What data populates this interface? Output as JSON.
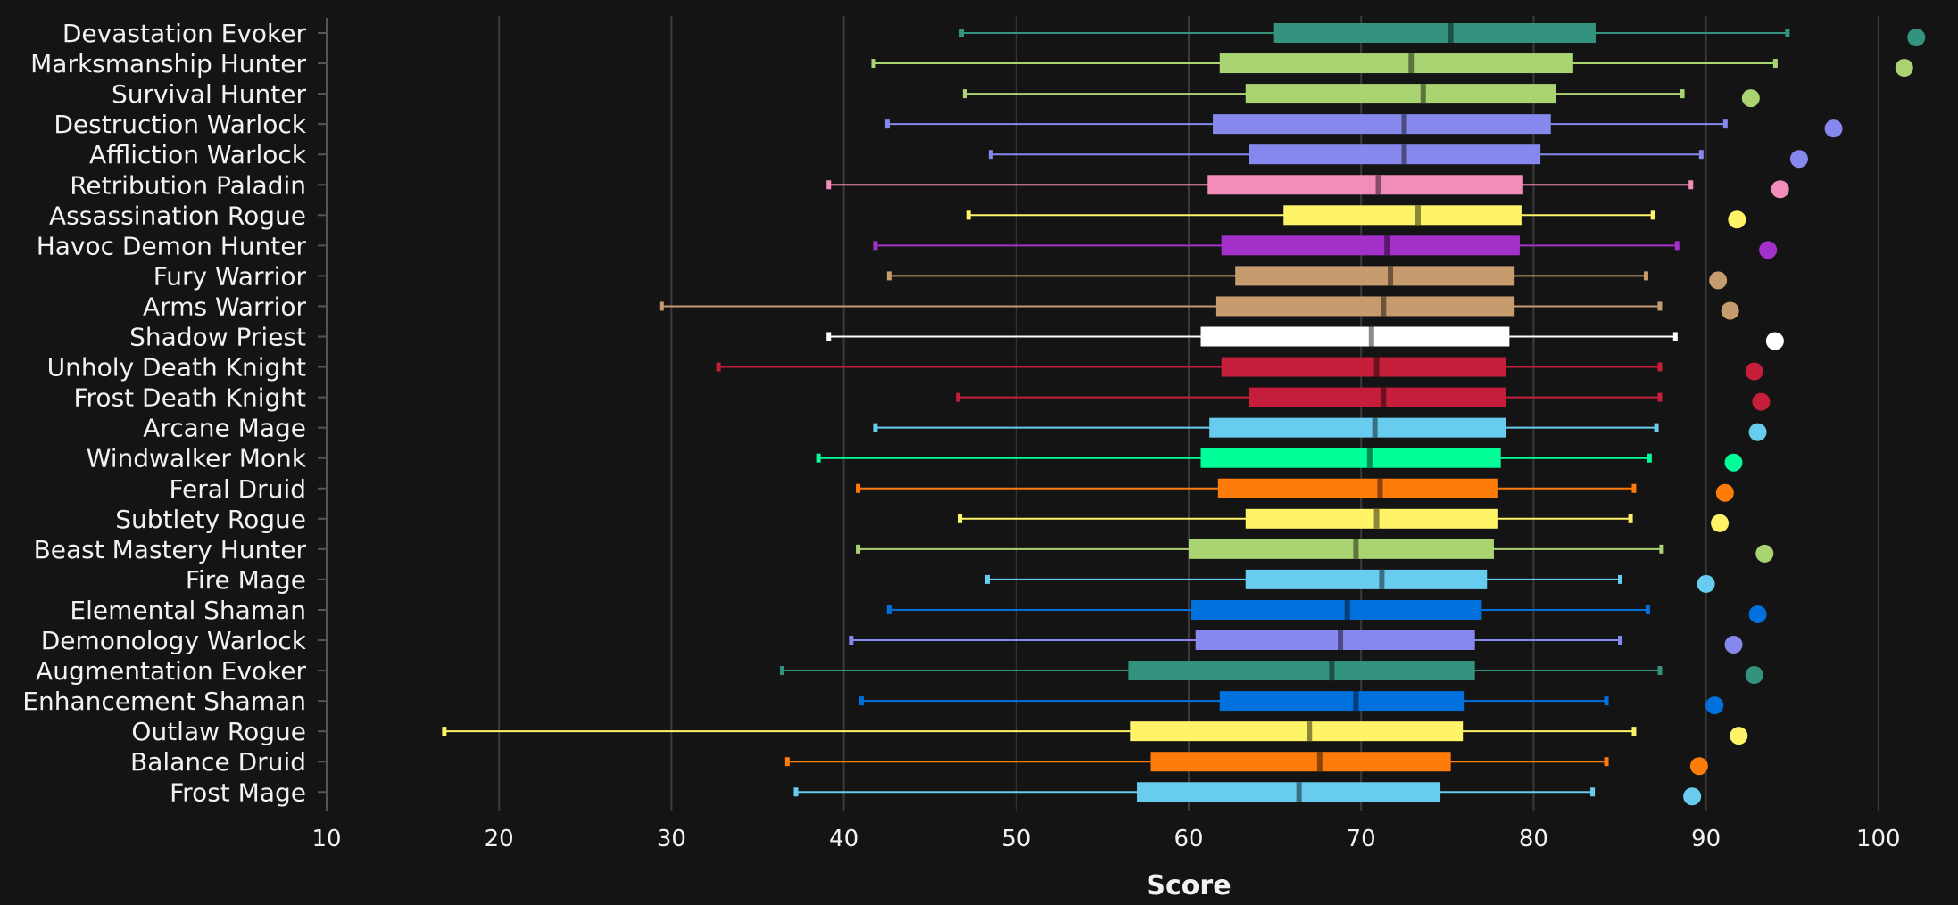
{
  "chart_data": {
    "type": "box",
    "orientation": "horizontal",
    "xlabel": "Score",
    "ylabel": "",
    "xlim": [
      10,
      102.5
    ],
    "xticks": [
      10,
      20,
      30,
      40,
      50,
      60,
      70,
      80,
      90,
      100
    ],
    "grid": true,
    "series": [
      {
        "name": "Devastation Evoker",
        "color": "#33937f",
        "min": 46.8,
        "q1": 64.9,
        "median": 75.2,
        "q3": 83.6,
        "max": 94.7,
        "point": 102.2
      },
      {
        "name": "Marksmanship Hunter",
        "color": "#aad372",
        "min": 41.7,
        "q1": 61.8,
        "median": 72.9,
        "q3": 82.3,
        "max": 94.0,
        "point": 101.5
      },
      {
        "name": "Survival Hunter",
        "color": "#aad372",
        "min": 47.0,
        "q1": 63.3,
        "median": 73.6,
        "q3": 81.3,
        "max": 88.6,
        "point": 92.6
      },
      {
        "name": "Destruction Warlock",
        "color": "#8788ee",
        "min": 42.5,
        "q1": 61.4,
        "median": 72.5,
        "q3": 81.0,
        "max": 91.1,
        "point": 97.4
      },
      {
        "name": "Affliction Warlock",
        "color": "#8788ee",
        "min": 48.5,
        "q1": 63.5,
        "median": 72.5,
        "q3": 80.4,
        "max": 89.7,
        "point": 95.4
      },
      {
        "name": "Retribution Paladin",
        "color": "#f48cba",
        "min": 39.1,
        "q1": 61.1,
        "median": 71.0,
        "q3": 79.4,
        "max": 89.1,
        "point": 94.3
      },
      {
        "name": "Assassination Rogue",
        "color": "#fff468",
        "min": 47.2,
        "q1": 65.5,
        "median": 73.3,
        "q3": 79.3,
        "max": 86.9,
        "point": 91.8
      },
      {
        "name": "Havoc Demon Hunter",
        "color": "#a330c9",
        "min": 41.8,
        "q1": 61.9,
        "median": 71.5,
        "q3": 79.2,
        "max": 88.3,
        "point": 93.6
      },
      {
        "name": "Fury Warrior",
        "color": "#c69b6d",
        "min": 42.6,
        "q1": 62.7,
        "median": 71.7,
        "q3": 78.9,
        "max": 86.5,
        "point": 90.7
      },
      {
        "name": "Arms Warrior",
        "color": "#c69b6d",
        "min": 29.4,
        "q1": 61.6,
        "median": 71.3,
        "q3": 78.9,
        "max": 87.3,
        "point": 91.4
      },
      {
        "name": "Shadow Priest",
        "color": "#ffffff",
        "min": 39.1,
        "q1": 60.7,
        "median": 70.6,
        "q3": 78.6,
        "max": 88.2,
        "point": 94.0
      },
      {
        "name": "Unholy Death Knight",
        "color": "#c41e3a",
        "min": 32.7,
        "q1": 61.9,
        "median": 70.9,
        "q3": 78.4,
        "max": 87.3,
        "point": 92.8
      },
      {
        "name": "Frost Death Knight",
        "color": "#c41e3a",
        "min": 46.6,
        "q1": 63.5,
        "median": 71.3,
        "q3": 78.4,
        "max": 87.3,
        "point": 93.2
      },
      {
        "name": "Arcane Mage",
        "color": "#68ccef",
        "min": 41.8,
        "q1": 61.2,
        "median": 70.8,
        "q3": 78.4,
        "max": 87.1,
        "point": 93.0
      },
      {
        "name": "Windwalker Monk",
        "color": "#00ff98",
        "min": 38.5,
        "q1": 60.7,
        "median": 70.5,
        "q3": 78.1,
        "max": 86.7,
        "point": 91.6
      },
      {
        "name": "Feral Druid",
        "color": "#ff7c0a",
        "min": 40.8,
        "q1": 61.7,
        "median": 71.1,
        "q3": 77.9,
        "max": 85.8,
        "point": 91.1
      },
      {
        "name": "Subtlety Rogue",
        "color": "#fff468",
        "min": 46.7,
        "q1": 63.3,
        "median": 70.9,
        "q3": 77.9,
        "max": 85.6,
        "point": 90.8
      },
      {
        "name": "Beast Mastery Hunter",
        "color": "#aad372",
        "min": 40.8,
        "q1": 60.0,
        "median": 69.7,
        "q3": 77.7,
        "max": 87.4,
        "point": 93.4
      },
      {
        "name": "Fire Mage",
        "color": "#68ccef",
        "min": 48.3,
        "q1": 63.3,
        "median": 71.2,
        "q3": 77.3,
        "max": 85.0,
        "point": 90.0
      },
      {
        "name": "Elemental Shaman",
        "color": "#0070dd",
        "min": 42.6,
        "q1": 60.1,
        "median": 69.2,
        "q3": 77.0,
        "max": 86.6,
        "point": 93.0
      },
      {
        "name": "Demonology Warlock",
        "color": "#8788ee",
        "min": 40.4,
        "q1": 60.4,
        "median": 68.8,
        "q3": 76.6,
        "max": 85.0,
        "point": 91.6
      },
      {
        "name": "Augmentation Evoker",
        "color": "#33937f",
        "min": 36.4,
        "q1": 56.5,
        "median": 68.3,
        "q3": 76.6,
        "max": 87.3,
        "point": 92.8
      },
      {
        "name": "Enhancement Shaman",
        "color": "#0070dd",
        "min": 41.0,
        "q1": 61.8,
        "median": 69.7,
        "q3": 76.0,
        "max": 84.2,
        "point": 90.5
      },
      {
        "name": "Outlaw Rogue",
        "color": "#fff468",
        "min": 16.8,
        "q1": 56.6,
        "median": 67.0,
        "q3": 75.9,
        "max": 85.8,
        "point": 91.9
      },
      {
        "name": "Balance Druid",
        "color": "#ff7c0a",
        "min": 36.7,
        "q1": 57.8,
        "median": 67.6,
        "q3": 75.2,
        "max": 84.2,
        "point": 89.6
      },
      {
        "name": "Frost Mage",
        "color": "#68ccef",
        "min": 37.2,
        "q1": 57.0,
        "median": 66.4,
        "q3": 74.6,
        "max": 83.4,
        "point": 89.2
      }
    ]
  }
}
